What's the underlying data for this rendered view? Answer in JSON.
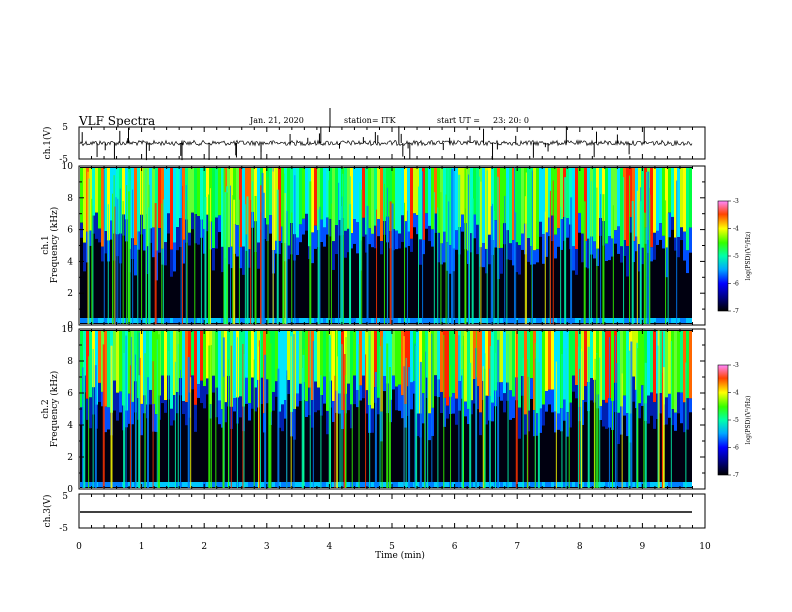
{
  "header": {
    "title": "VLF Spectra",
    "date": "Jan. 21, 2020",
    "station": "station= ITK",
    "start_label": "start UT =",
    "start_time": "23: 20: 0"
  },
  "chart_data": [
    {
      "type": "line",
      "id": "ch1-waveform",
      "ylabel": "ch.1(V)",
      "ylim": [
        -5,
        5
      ],
      "yticks": [
        "5",
        "-5"
      ],
      "xlim": [
        0,
        10
      ],
      "description_value": "noisy waveform near 0 V with sporadic spikes"
    },
    {
      "type": "heatmap",
      "id": "ch1-spectrogram",
      "ylabel": "ch.1 Frequency (kHz)",
      "ylabel_line1": "ch.1",
      "ylabel_line2": "Frequency (kHz)",
      "ylim": [
        0,
        10
      ],
      "yticks": [
        "0",
        "2",
        "4",
        "6",
        "8",
        "10"
      ],
      "xlim": [
        0,
        9.8
      ],
      "colorbar": {
        "label": "log(PSD)(V²/Hz)",
        "ticks": [
          "-3",
          "-4",
          "-5",
          "-6",
          "-7"
        ],
        "range": [
          -7,
          -3
        ]
      }
    },
    {
      "type": "heatmap",
      "id": "ch2-spectrogram",
      "ylabel": "ch.2 Frequency (kHz)",
      "ylabel_line1": "ch.2",
      "ylabel_line2": "Frequency (kHz)",
      "ylim": [
        0,
        10
      ],
      "yticks": [
        "0",
        "2",
        "4",
        "6",
        "8",
        "10"
      ],
      "xlim": [
        0,
        9.8
      ],
      "colorbar": {
        "label": "log(PSD)(V²/Hz)",
        "ticks": [
          "-3",
          "-4",
          "-5",
          "-6",
          "-7"
        ],
        "range": [
          -7,
          -3
        ]
      }
    },
    {
      "type": "line",
      "id": "ch3-waveform",
      "ylabel": "ch.3(V)",
      "ylim": [
        -5,
        5
      ],
      "yticks": [
        "5",
        "-5"
      ],
      "xlim": [
        0,
        10
      ],
      "values_constant": -1.5
    }
  ],
  "xaxis": {
    "label": "Time (min)",
    "range": [
      0,
      10
    ],
    "ticks": [
      "0",
      "1",
      "2",
      "3",
      "4",
      "5",
      "6",
      "7",
      "8",
      "9",
      "10"
    ]
  }
}
